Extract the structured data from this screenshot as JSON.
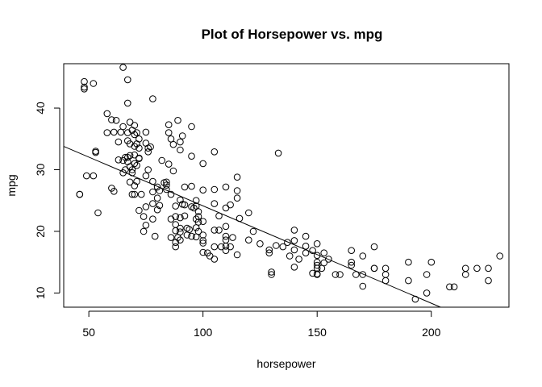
{
  "chart_data": {
    "type": "scatter",
    "title": "Plot of Horsepower vs. mpg",
    "xlabel": "horsepower",
    "ylabel": "mpg",
    "xlim": [
      39,
      234
    ],
    "ylim": [
      7.7,
      47.2
    ],
    "x_ticks": [
      50,
      100,
      150,
      200
    ],
    "y_ticks": [
      10,
      20,
      30,
      40
    ],
    "grid": false,
    "legend": "none",
    "colors": {
      "points": "#000000",
      "line": "#000000",
      "axes": "#000000",
      "background": "#ffffff"
    },
    "regression_line": {
      "intercept": 39.94,
      "slope": -0.158
    },
    "series": [
      {
        "x": [
          46,
          46,
          48,
          48,
          48,
          49,
          52,
          52,
          53,
          53,
          54,
          58,
          58,
          60,
          60,
          61,
          61,
          62,
          63,
          63,
          64,
          65,
          65,
          65,
          65,
          66,
          66,
          67,
          67,
          67,
          67,
          67,
          67,
          68,
          68,
          68,
          68,
          68,
          69,
          69,
          69,
          69,
          70,
          70,
          70,
          70,
          70,
          70,
          70,
          71,
          71,
          71,
          71,
          72,
          72,
          72,
          72,
          72,
          73,
          74,
          74,
          75,
          75,
          75,
          75,
          75,
          76,
          76,
          76,
          77,
          78,
          78,
          78,
          78,
          78,
          79,
          80,
          80,
          80,
          81,
          81,
          82,
          83,
          84,
          84,
          84,
          85,
          85,
          85,
          86,
          86,
          86,
          86,
          87,
          87,
          88,
          88,
          88,
          88,
          88,
          88,
          89,
          89,
          90,
          90,
          90,
          90,
          90,
          90,
          90,
          91,
          91,
          92,
          92,
          92,
          93,
          93,
          94,
          95,
          95,
          95,
          95,
          95,
          96,
          97,
          97,
          97,
          97,
          97,
          98,
          98,
          98,
          98,
          100,
          100,
          100,
          100,
          100,
          100,
          100,
          102,
          103,
          105,
          105,
          105,
          105,
          105,
          105,
          107,
          107,
          108,
          110,
          110,
          110,
          110,
          110,
          110,
          110,
          112,
          112,
          113,
          115,
          115,
          115,
          115,
          116,
          120,
          120,
          122,
          125,
          129,
          129,
          130,
          130,
          132,
          133,
          135,
          137,
          138,
          140,
          140,
          140,
          140,
          142,
          145,
          145,
          145,
          148,
          148,
          150,
          150,
          150,
          150,
          150,
          150,
          150,
          152,
          153,
          153,
          155,
          158,
          160,
          165,
          165,
          165,
          167,
          170,
          170,
          170,
          175,
          175,
          175,
          180,
          180,
          180,
          190,
          190,
          193,
          198,
          198,
          200,
          208,
          210,
          215,
          215,
          220,
          225,
          225,
          230
        ],
        "y": [
          26,
          26,
          43.1,
          43.4,
          44.3,
          29,
          29,
          44,
          32.8,
          33,
          23,
          36,
          39.1,
          38.1,
          27,
          36.1,
          26.5,
          38,
          34.5,
          31.6,
          36.1,
          46.6,
          37,
          31.5,
          29.5,
          32,
          30,
          44.6,
          40.8,
          36,
          34.7,
          32,
          31.3,
          37.7,
          34.2,
          32.3,
          30.5,
          28,
          36.4,
          30,
          26,
          29.5,
          37.2,
          35.7,
          33.8,
          32.4,
          31,
          27.4,
          26,
          36,
          34.2,
          30.7,
          28.1,
          35,
          33.5,
          31.9,
          31.8,
          23.4,
          26,
          22.4,
          20,
          29,
          34.3,
          36.1,
          21,
          24,
          30,
          32.9,
          33.5,
          33.7,
          28.1,
          24.5,
          22,
          26.4,
          41.5,
          19.2,
          27.2,
          25.4,
          23.5,
          24.2,
          26.6,
          31.5,
          27.9,
          27.5,
          26.8,
          28,
          36,
          37.3,
          30.9,
          26,
          22,
          19,
          35,
          34.1,
          29.8,
          21.1,
          24.1,
          20.1,
          22.4,
          18.2,
          17.5,
          19,
          38,
          34.5,
          33.2,
          25.1,
          22.2,
          20.5,
          19.9,
          18.6,
          24.4,
          35.5,
          22.5,
          27.2,
          24.3,
          20.5,
          19.4,
          20.3,
          37,
          32.2,
          27.3,
          19.2,
          24,
          23.8,
          25,
          20.6,
          19.1,
          24.1,
          22,
          21.5,
          20,
          23.2,
          22.4,
          19.4,
          16.6,
          31,
          26.7,
          18.5,
          21.6,
          18.1,
          16.5,
          16,
          15.5,
          20.2,
          17.5,
          32.9,
          26.8,
          24.5,
          22.5,
          20.2,
          17.5,
          20.8,
          17.6,
          19.2,
          27.2,
          23.8,
          18.6,
          16.9,
          17.5,
          24.3,
          19,
          16.2,
          28.8,
          26.6,
          25.4,
          22.1,
          18.6,
          23,
          20,
          18,
          17,
          16.5,
          13,
          13.4,
          17.7,
          32.7,
          17.5,
          18.2,
          16,
          20.2,
          17,
          18.5,
          14.2,
          15.5,
          16.5,
          17.6,
          19.2,
          16.9,
          13.2,
          14.5,
          13.1,
          18,
          16.1,
          15,
          14,
          13,
          14,
          16.5,
          14.9,
          15.5,
          13,
          13,
          16.9,
          15,
          14.5,
          13,
          11.1,
          13,
          16,
          14,
          17.5,
          14,
          13,
          12,
          14,
          12,
          15,
          9,
          13,
          10,
          15,
          11,
          11,
          14,
          13,
          14,
          12,
          14,
          16
        ]
      }
    ]
  }
}
